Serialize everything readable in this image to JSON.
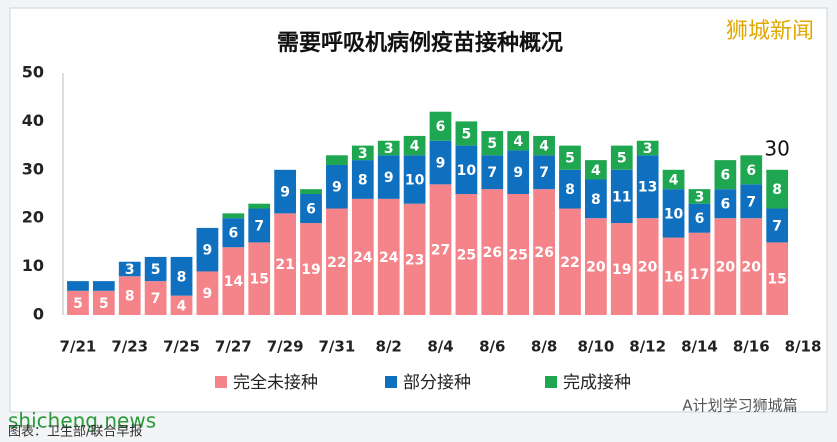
{
  "chart_data": {
    "type": "stacked_bar",
    "title": "需要呼吸机病例疫苗接种概况",
    "categories": [
      "7/21",
      null,
      "7/23",
      null,
      "7/25",
      null,
      "7/27",
      null,
      "7/29",
      null,
      "7/31",
      null,
      "8/2",
      null,
      "8/4",
      null,
      "8/6",
      null,
      "8/8",
      null,
      "8/10",
      null,
      "8/12",
      null,
      "8/14",
      null,
      "8/16",
      null,
      "8/18"
    ],
    "series": [
      {
        "name": "完全未接种",
        "color": "#f4838a",
        "values": [
          5,
          5,
          8,
          7,
          4,
          9,
          14,
          15,
          21,
          19,
          22,
          24,
          24,
          23,
          27,
          25,
          26,
          25,
          26,
          22,
          20,
          19,
          20,
          16,
          17,
          20,
          20,
          15,
          null
        ]
      },
      {
        "name": "部分接种",
        "color": "#0f70c0",
        "values": [
          2,
          2,
          3,
          5,
          8,
          9,
          6,
          7,
          9,
          6,
          9,
          8,
          9,
          10,
          9,
          10,
          7,
          9,
          7,
          8,
          8,
          11,
          13,
          10,
          6,
          6,
          7,
          7,
          null
        ]
      },
      {
        "name": "完成接种",
        "color": "#1fa650",
        "values": [
          null,
          null,
          null,
          null,
          null,
          null,
          1,
          1,
          null,
          1,
          2,
          3,
          3,
          4,
          6,
          5,
          5,
          4,
          4,
          5,
          4,
          5,
          3,
          4,
          3,
          6,
          6,
          8,
          null
        ]
      }
    ],
    "annotation": "30",
    "ylim": [
      0,
      50
    ],
    "yticks": [
      0,
      10,
      20,
      30,
      40,
      50
    ],
    "grid": false,
    "watermark": "狮城新闻",
    "site": "shicheng.news",
    "account": "A计划学习狮城篇",
    "source": "图表：卫生部/联合早报"
  }
}
